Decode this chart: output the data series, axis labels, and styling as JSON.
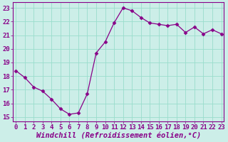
{
  "x": [
    0,
    1,
    2,
    3,
    4,
    5,
    6,
    7,
    8,
    9,
    10,
    11,
    12,
    13,
    14,
    15,
    16,
    17,
    18,
    19,
    20,
    21,
    22,
    23
  ],
  "y": [
    18.4,
    17.9,
    17.2,
    16.9,
    16.3,
    15.6,
    15.2,
    15.3,
    16.7,
    19.7,
    20.5,
    21.9,
    23.0,
    22.8,
    22.3,
    21.9,
    21.8,
    21.7,
    21.8,
    21.2,
    21.6,
    21.1,
    21.4,
    21.1
  ],
  "line_color": "#880088",
  "marker": "D",
  "marker_size": 2.5,
  "bg_color": "#cceee8",
  "grid_color": "#99ddcc",
  "xlabel": "Windchill (Refroidissement éolien,°C)",
  "tick_fontsize": 6.5,
  "xlabel_fontsize": 7.5,
  "yticks": [
    15,
    16,
    17,
    18,
    19,
    20,
    21,
    22,
    23
  ],
  "xticks": [
    0,
    1,
    2,
    3,
    4,
    5,
    6,
    7,
    8,
    9,
    10,
    11,
    12,
    13,
    14,
    15,
    16,
    17,
    18,
    19,
    20,
    21,
    22,
    23
  ],
  "xlim": [
    -0.3,
    23.3
  ],
  "ylim": [
    14.7,
    23.4
  ]
}
